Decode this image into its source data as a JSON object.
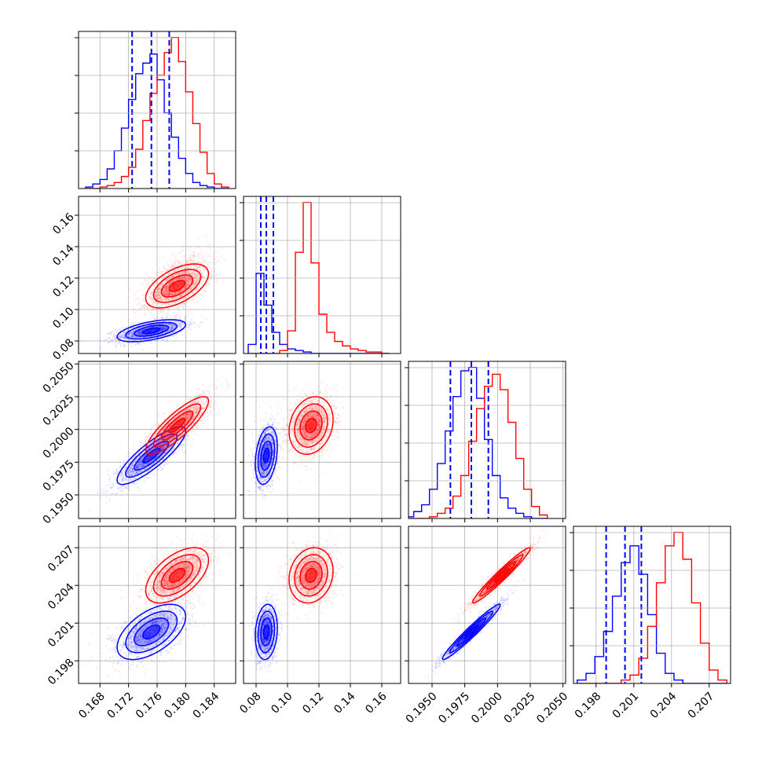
{
  "colors": {
    "series_a": "#ff0000",
    "series_b": "#0000ff",
    "grid": "#b0b0b0"
  },
  "chart_data": {
    "type": "corner",
    "grid": true,
    "series": [
      {
        "color": "#0000ff",
        "marginal_quantile_lines": [
          [
            0.1725,
            0.1752,
            0.1777
          ],
          [
            0.083,
            0.0865,
            0.091
          ],
          [
            0.1964,
            0.198,
            0.1993
          ],
          [
            0.1988,
            0.2003,
            0.2016
          ]
        ]
      },
      {
        "color": "#ff0000"
      }
    ],
    "parameters": [
      {
        "range": [
          0.165,
          0.187
        ],
        "ticks": [
          0.168,
          0.172,
          0.176,
          0.18,
          0.184
        ],
        "tick_labels": [
          "0.168",
          "0.172",
          "0.176",
          "0.180",
          "0.184"
        ]
      },
      {
        "range": [
          0.072,
          0.172
        ],
        "ticks": [
          0.08,
          0.1,
          0.12,
          0.14,
          0.16
        ],
        "tick_labels": [
          "0.08",
          "0.10",
          "0.12",
          "0.14",
          "0.16"
        ]
      },
      {
        "range": [
          0.1932,
          0.2052
        ],
        "ticks": [
          0.195,
          0.1975,
          0.2,
          0.2025,
          0.205
        ],
        "tick_labels": [
          "0.1950",
          "0.1975",
          "0.2000",
          "0.2025",
          "0.2050"
        ]
      },
      {
        "range": [
          0.1962,
          0.2087
        ],
        "ticks": [
          0.198,
          0.201,
          0.204,
          0.207
        ],
        "tick_labels": [
          "0.198",
          "0.201",
          "0.204",
          "0.207"
        ]
      }
    ],
    "marginal_histograms": [
      {
        "bins": [
          0.166,
          0.167,
          0.168,
          0.169,
          0.17,
          0.171,
          0.172,
          0.173,
          0.174,
          0.175,
          0.176,
          0.177,
          0.178,
          0.179,
          0.18,
          0.181,
          0.182,
          0.183,
          0.184,
          0.185,
          0.186
        ],
        "counts": {
          "b": [
            1,
            3,
            6,
            13,
            25,
            40,
            59,
            76,
            83,
            89,
            72,
            50,
            34,
            20,
            10,
            4,
            2,
            1,
            0,
            0
          ],
          "a": [
            0,
            0,
            1,
            2,
            4,
            8,
            14,
            26,
            45,
            63,
            75,
            90,
            100,
            84,
            64,
            43,
            24,
            10,
            3,
            1
          ]
        }
      },
      {
        "bins": [
          0.075,
          0.08,
          0.085,
          0.09,
          0.095,
          0.1,
          0.105,
          0.11,
          0.115,
          0.12,
          0.125,
          0.13,
          0.135,
          0.14,
          0.145,
          0.15,
          0.155,
          0.16,
          0.165
        ],
        "counts": {
          "b": [
            6,
            53,
            32,
            14,
            6,
            3,
            2,
            1,
            0,
            0,
            0,
            0,
            0,
            0,
            0,
            0,
            0,
            0
          ],
          "a": [
            0,
            0,
            0,
            0,
            2,
            15,
            67,
            100,
            60,
            26,
            14,
            8,
            5,
            3,
            2,
            1,
            1,
            0
          ]
        }
      },
      {
        "bins": [
          0.193,
          0.1936,
          0.1942,
          0.1948,
          0.1954,
          0.196,
          0.1966,
          0.1972,
          0.1978,
          0.1984,
          0.199,
          0.1996,
          0.2002,
          0.2008,
          0.2014,
          0.202,
          0.2026,
          0.2032,
          0.2038
        ],
        "counts": {
          "b": [
            1,
            4,
            8,
            17,
            32,
            51,
            71,
            86,
            88,
            70,
            46,
            25,
            12,
            6,
            3,
            1,
            0,
            0
          ],
          "a": [
            0,
            0,
            0,
            1,
            3,
            6,
            13,
            25,
            45,
            64,
            77,
            84,
            75,
            56,
            35,
            17,
            7,
            2
          ]
        }
      },
      {
        "bins": [
          0.1965,
          0.1972,
          0.1979,
          0.1986,
          0.1993,
          0.2,
          0.2007,
          0.2014,
          0.2021,
          0.2028,
          0.2035,
          0.2042,
          0.2049,
          0.2056,
          0.2063,
          0.207,
          0.2077,
          0.2084
        ],
        "counts": {
          "b": [
            2,
            6,
            16,
            31,
            52,
            72,
            82,
            65,
            41,
            18,
            6,
            2,
            0,
            0,
            0,
            0,
            0
          ],
          "a": [
            0,
            0,
            0,
            0,
            0,
            2,
            5,
            15,
            34,
            60,
            82,
            90,
            74,
            48,
            24,
            8,
            2
          ]
        }
      }
    ],
    "joint_distributions": {
      "b": [
        {
          "mean": 0.1752,
          "std": 0.0024
        },
        {
          "mean": 0.0865,
          "std": 0.0035
        },
        {
          "mean": 0.198,
          "std": 0.0011
        },
        {
          "mean": 0.2003,
          "std": 0.0011
        }
      ],
      "a": [
        {
          "mean": 0.1788,
          "std": 0.0022
        },
        {
          "mean": 0.115,
          "std": 0.007
        },
        {
          "mean": 0.2003,
          "std": 0.0011
        },
        {
          "mean": 0.2048,
          "std": 0.0011
        }
      ],
      "correlations": {
        "b": {
          "1-0": 0.55,
          "2-0": 0.85,
          "2-1": 0.3,
          "3-0": 0.55,
          "3-1": 0.15,
          "3-2": 0.97
        },
        "a": {
          "1-0": 0.55,
          "2-0": 0.85,
          "2-1": 0.2,
          "3-0": 0.55,
          "3-1": 0.15,
          "3-2": 0.97
        }
      },
      "contour_sigmas": [
        0.5,
        1.0,
        1.5,
        2.0
      ]
    }
  }
}
